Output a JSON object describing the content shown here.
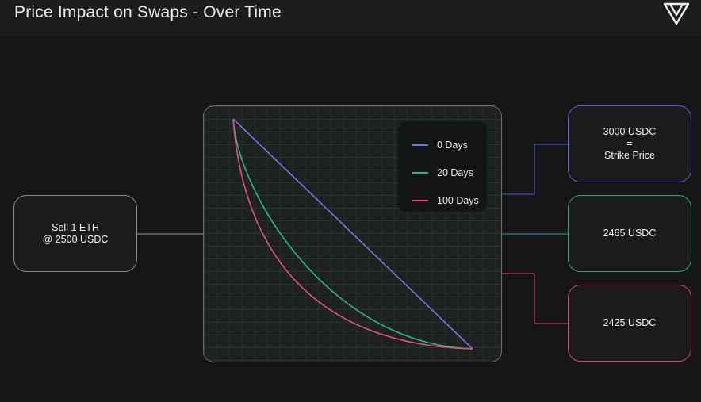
{
  "header": {
    "title": "Price Impact on Swaps - Over Time",
    "logo_icon": "v-triangle-logo-icon"
  },
  "input_box": {
    "line1": "Sell 1 ETH",
    "line2": "@ 2500 USDC"
  },
  "chart_data": {
    "type": "line",
    "title": "",
    "xlabel": "",
    "ylabel": "",
    "grid": true,
    "legend": "top-right",
    "series": [
      {
        "name": "0 Days",
        "color": "#6b78e6",
        "curvature": 0
      },
      {
        "name": "20 Days",
        "color": "#1fb99a",
        "curvature": 0.4
      },
      {
        "name": "100 Days",
        "color": "#e8507a",
        "curvature": 0.8
      }
    ]
  },
  "outputs": [
    {
      "lines": [
        "3000 USDC",
        "=",
        "Strike Price"
      ],
      "color": "#5262d9"
    },
    {
      "lines": [
        "2465 USDC"
      ],
      "color": "#1aa98c"
    },
    {
      "lines": [
        "2425 USDC"
      ],
      "color": "#d9466c"
    }
  ]
}
